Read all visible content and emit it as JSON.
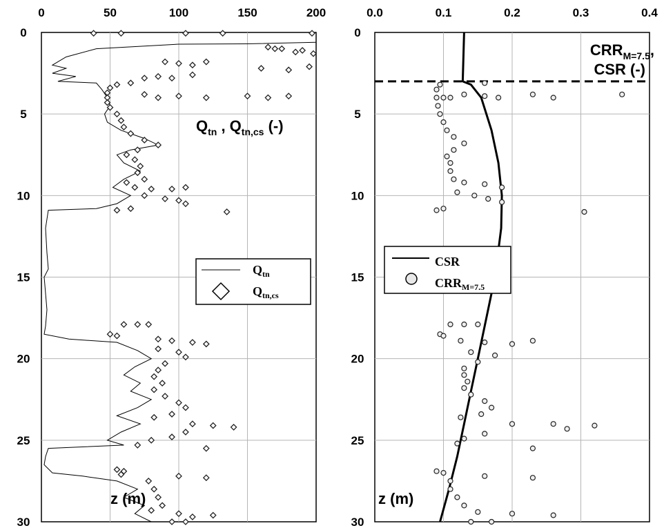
{
  "chart_data": [
    {
      "type": "scatter",
      "xlim": [
        0,
        200
      ],
      "ylim": [
        0,
        30
      ],
      "x_ticks": [
        "0",
        "50",
        "100",
        "150",
        "200"
      ],
      "y_ticks": [
        "0",
        "5",
        "10",
        "15",
        "20",
        "25",
        "30"
      ],
      "grid": true,
      "legend_position": "center-right",
      "annotation": {
        "main": "Q",
        "sub1": "tn",
        "sep": " , Q",
        "sub2": "tn,cs",
        "tail": " (-)"
      },
      "ylabel": "z (m)",
      "series": [
        {
          "name": "Qtn",
          "legend_main": "Q",
          "legend_sub": "tn",
          "style": "line",
          "points": [
            [
              200,
              0.6
            ],
            [
              150,
              0.7
            ],
            [
              100,
              0.72
            ],
            [
              40,
              1.0
            ],
            [
              18,
              1.5
            ],
            [
              8,
              2.0
            ],
            [
              18,
              2.2
            ],
            [
              8,
              2.5
            ],
            [
              25,
              2.7
            ],
            [
              12,
              3.0
            ],
            [
              40,
              3.1
            ],
            [
              44,
              3.5
            ],
            [
              48,
              4.0
            ],
            [
              50,
              4.5
            ],
            [
              46,
              5.0
            ],
            [
              48,
              5.5
            ],
            [
              58,
              6.0
            ],
            [
              75,
              6.5
            ],
            [
              85,
              6.9
            ],
            [
              65,
              7.2
            ],
            [
              55,
              7.5
            ],
            [
              60,
              8.0
            ],
            [
              72,
              8.5
            ],
            [
              60,
              9.0
            ],
            [
              52,
              9.5
            ],
            [
              65,
              10.0
            ],
            [
              55,
              10.5
            ],
            [
              40,
              10.8
            ],
            [
              5,
              10.9
            ],
            [
              3,
              12.0
            ],
            [
              4,
              13.5
            ],
            [
              5,
              14.5
            ],
            [
              2,
              15.0
            ],
            [
              3,
              16.0
            ],
            [
              4,
              17.0
            ],
            [
              3,
              18.0
            ],
            [
              2,
              18.5
            ],
            [
              20,
              18.8
            ],
            [
              55,
              19.0
            ],
            [
              70,
              19.5
            ],
            [
              80,
              20.0
            ],
            [
              68,
              20.5
            ],
            [
              60,
              21.0
            ],
            [
              72,
              21.5
            ],
            [
              65,
              22.0
            ],
            [
              80,
              22.5
            ],
            [
              70,
              23.0
            ],
            [
              55,
              23.5
            ],
            [
              72,
              24.0
            ],
            [
              58,
              24.5
            ],
            [
              48,
              25.0
            ],
            [
              60,
              25.3
            ],
            [
              5,
              25.5
            ],
            [
              3,
              26.0
            ],
            [
              2,
              26.5
            ],
            [
              8,
              27.0
            ],
            [
              30,
              27.2
            ],
            [
              55,
              27.5
            ],
            [
              70,
              28.0
            ],
            [
              60,
              28.5
            ],
            [
              75,
              29.0
            ],
            [
              68,
              29.5
            ],
            [
              80,
              30.0
            ]
          ]
        },
        {
          "name": "Qtn,cs",
          "legend_main": "Q",
          "legend_sub": "tn,cs",
          "style": "diamond",
          "points": [
            [
              38,
              0.05
            ],
            [
              58,
              0.05
            ],
            [
              105,
              0.05
            ],
            [
              132,
              0.05
            ],
            [
              197,
              0.05
            ],
            [
              165,
              0.9
            ],
            [
              175,
              1.0
            ],
            [
              190,
              1.1
            ],
            [
              198,
              1.3
            ],
            [
              170,
              1.0
            ],
            [
              185,
              1.2
            ],
            [
              90,
              1.8
            ],
            [
              100,
              1.9
            ],
            [
              110,
              2.0
            ],
            [
              120,
              1.8
            ],
            [
              160,
              2.2
            ],
            [
              180,
              2.3
            ],
            [
              195,
              2.1
            ],
            [
              75,
              2.8
            ],
            [
              85,
              2.7
            ],
            [
              95,
              2.8
            ],
            [
              110,
              2.6
            ],
            [
              65,
              3.1
            ],
            [
              55,
              3.2
            ],
            [
              50,
              3.4
            ],
            [
              48,
              3.7
            ],
            [
              48,
              4.0
            ],
            [
              48,
              4.3
            ],
            [
              50,
              4.6
            ],
            [
              55,
              5.0
            ],
            [
              58,
              5.4
            ],
            [
              60,
              5.8
            ],
            [
              65,
              6.2
            ],
            [
              75,
              6.6
            ],
            [
              85,
              6.9
            ],
            [
              70,
              7.2
            ],
            [
              62,
              7.5
            ],
            [
              68,
              7.8
            ],
            [
              72,
              8.2
            ],
            [
              70,
              8.6
            ],
            [
              75,
              9.0
            ],
            [
              62,
              9.2
            ],
            [
              68,
              9.5
            ],
            [
              80,
              9.6
            ],
            [
              95,
              9.6
            ],
            [
              105,
              9.5
            ],
            [
              75,
              10.0
            ],
            [
              90,
              10.2
            ],
            [
              100,
              10.3
            ],
            [
              105,
              10.5
            ],
            [
              65,
              10.8
            ],
            [
              55,
              10.9
            ],
            [
              75,
              3.8
            ],
            [
              85,
              4.0
            ],
            [
              100,
              3.9
            ],
            [
              120,
              4.0
            ],
            [
              150,
              3.9
            ],
            [
              165,
              4.0
            ],
            [
              180,
              3.9
            ],
            [
              135,
              11.0
            ],
            [
              60,
              17.9
            ],
            [
              70,
              17.9
            ],
            [
              78,
              17.9
            ],
            [
              50,
              18.5
            ],
            [
              55,
              18.6
            ],
            [
              85,
              18.8
            ],
            [
              95,
              18.9
            ],
            [
              110,
              19.0
            ],
            [
              120,
              19.1
            ],
            [
              85,
              19.4
            ],
            [
              100,
              19.6
            ],
            [
              105,
              19.9
            ],
            [
              90,
              20.3
            ],
            [
              85,
              20.7
            ],
            [
              82,
              21.1
            ],
            [
              88,
              21.5
            ],
            [
              82,
              21.9
            ],
            [
              90,
              22.3
            ],
            [
              100,
              22.7
            ],
            [
              105,
              23.0
            ],
            [
              95,
              23.4
            ],
            [
              82,
              23.6
            ],
            [
              110,
              24.0
            ],
            [
              125,
              24.1
            ],
            [
              140,
              24.2
            ],
            [
              105,
              24.5
            ],
            [
              95,
              24.8
            ],
            [
              80,
              25.0
            ],
            [
              70,
              25.3
            ],
            [
              120,
              25.5
            ],
            [
              55,
              26.8
            ],
            [
              60,
              26.9
            ],
            [
              58,
              27.1
            ],
            [
              100,
              27.2
            ],
            [
              120,
              27.3
            ],
            [
              78,
              27.5
            ],
            [
              82,
              28.0
            ],
            [
              85,
              28.5
            ],
            [
              88,
              29.0
            ],
            [
              80,
              29.3
            ],
            [
              100,
              29.5
            ],
            [
              110,
              29.7
            ],
            [
              125,
              29.6
            ],
            [
              95,
              30.0
            ],
            [
              105,
              30.0
            ]
          ]
        }
      ]
    },
    {
      "type": "scatter",
      "xlim": [
        0,
        0.4
      ],
      "ylim": [
        0,
        30
      ],
      "x_ticks": [
        "0.0",
        "0.1",
        "0.2",
        "0.3",
        "0.4"
      ],
      "y_ticks": [
        "0",
        "5",
        "10",
        "15",
        "20",
        "25",
        "30"
      ],
      "grid": true,
      "legend_position": "center-left",
      "annotation": {
        "line1_main": "CRR",
        "line1_sub": "M=7.5",
        "line1_tail": ",",
        "line2": "CSR (-)"
      },
      "ylabel": "z (m)",
      "water_table_depth": 3.0,
      "series": [
        {
          "name": "CSR",
          "legend_main": "CSR",
          "legend_sub": "",
          "style": "line",
          "points": [
            [
              0.13,
              0.0
            ],
            [
              0.128,
              3.0
            ],
            [
              0.14,
              3.2
            ],
            [
              0.155,
              4.0
            ],
            [
              0.17,
              6.0
            ],
            [
              0.18,
              8.0
            ],
            [
              0.185,
              10.0
            ],
            [
              0.184,
              12.0
            ],
            [
              0.178,
              14.0
            ],
            [
              0.17,
              16.0
            ],
            [
              0.16,
              18.0
            ],
            [
              0.15,
              20.0
            ],
            [
              0.14,
              22.0
            ],
            [
              0.13,
              24.0
            ],
            [
              0.12,
              26.0
            ],
            [
              0.108,
              28.0
            ],
            [
              0.095,
              30.0
            ]
          ]
        },
        {
          "name": "CRRM=7.5",
          "legend_main": "CRR",
          "legend_sub": "M=7.5",
          "style": "circle",
          "points": [
            [
              0.095,
              3.2
            ],
            [
              0.09,
              3.5
            ],
            [
              0.09,
              4.0
            ],
            [
              0.1,
              4.0
            ],
            [
              0.11,
              4.0
            ],
            [
              0.13,
              3.8
            ],
            [
              0.16,
              3.9
            ],
            [
              0.18,
              4.0
            ],
            [
              0.23,
              3.8
            ],
            [
              0.26,
              4.0
            ],
            [
              0.36,
              3.8
            ],
            [
              0.16,
              3.1
            ],
            [
              0.092,
              4.5
            ],
            [
              0.095,
              5.0
            ],
            [
              0.1,
              5.5
            ],
            [
              0.105,
              6.0
            ],
            [
              0.115,
              6.4
            ],
            [
              0.13,
              6.8
            ],
            [
              0.115,
              7.2
            ],
            [
              0.105,
              7.6
            ],
            [
              0.11,
              8.0
            ],
            [
              0.11,
              8.5
            ],
            [
              0.115,
              9.0
            ],
            [
              0.13,
              9.2
            ],
            [
              0.16,
              9.3
            ],
            [
              0.185,
              9.5
            ],
            [
              0.12,
              9.8
            ],
            [
              0.145,
              10.0
            ],
            [
              0.165,
              10.2
            ],
            [
              0.185,
              10.4
            ],
            [
              0.1,
              10.8
            ],
            [
              0.09,
              10.9
            ],
            [
              0.305,
              11.0
            ],
            [
              0.11,
              17.9
            ],
            [
              0.13,
              17.9
            ],
            [
              0.15,
              17.9
            ],
            [
              0.095,
              18.5
            ],
            [
              0.1,
              18.6
            ],
            [
              0.125,
              18.9
            ],
            [
              0.16,
              19.0
            ],
            [
              0.2,
              19.1
            ],
            [
              0.23,
              18.9
            ],
            [
              0.14,
              19.6
            ],
            [
              0.175,
              19.8
            ],
            [
              0.15,
              20.2
            ],
            [
              0.13,
              20.6
            ],
            [
              0.13,
              21.0
            ],
            [
              0.135,
              21.4
            ],
            [
              0.13,
              21.8
            ],
            [
              0.14,
              22.2
            ],
            [
              0.16,
              22.6
            ],
            [
              0.17,
              23.0
            ],
            [
              0.155,
              23.4
            ],
            [
              0.125,
              23.6
            ],
            [
              0.2,
              24.0
            ],
            [
              0.26,
              24.0
            ],
            [
              0.32,
              24.1
            ],
            [
              0.28,
              24.3
            ],
            [
              0.16,
              24.6
            ],
            [
              0.13,
              24.9
            ],
            [
              0.12,
              25.2
            ],
            [
              0.23,
              25.5
            ],
            [
              0.09,
              26.9
            ],
            [
              0.1,
              27.0
            ],
            [
              0.16,
              27.2
            ],
            [
              0.23,
              27.3
            ],
            [
              0.11,
              27.5
            ],
            [
              0.11,
              28.0
            ],
            [
              0.12,
              28.5
            ],
            [
              0.13,
              29.0
            ],
            [
              0.15,
              29.4
            ],
            [
              0.2,
              29.5
            ],
            [
              0.26,
              29.6
            ],
            [
              0.14,
              30.0
            ],
            [
              0.17,
              30.0
            ]
          ]
        }
      ]
    }
  ]
}
